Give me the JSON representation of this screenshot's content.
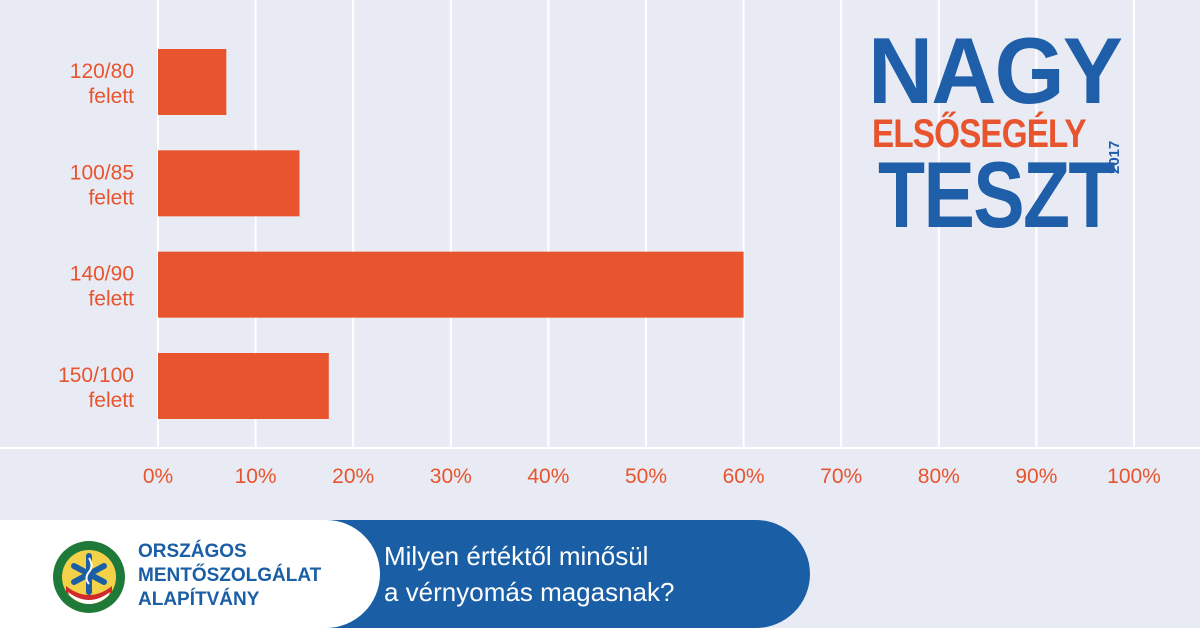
{
  "chart_data": {
    "type": "bar",
    "orientation": "horizontal",
    "categories": [
      "120/80 felett",
      "100/85 felett",
      "140/90 felett",
      "150/100 felett"
    ],
    "category_lines": [
      [
        "120/80",
        "felett"
      ],
      [
        "100/85",
        "felett"
      ],
      [
        "140/90",
        "felett"
      ],
      [
        "150/100",
        "felett"
      ]
    ],
    "values": [
      7,
      14.5,
      60,
      17.5
    ],
    "xlim": [
      0,
      100
    ],
    "xticks": [
      0,
      10,
      20,
      30,
      40,
      50,
      60,
      70,
      80,
      90,
      100
    ],
    "xtick_labels": [
      "0%",
      "10%",
      "20%",
      "30%",
      "40%",
      "50%",
      "60%",
      "70%",
      "80%",
      "90%",
      "100%"
    ],
    "grid": "vertical",
    "title": "",
    "xlabel": "",
    "ylabel": ""
  },
  "brand": {
    "line1": "NAGY",
    "line2": "ELSŐSEGÉLY",
    "line3": "TESZT",
    "year": "2017"
  },
  "footer": {
    "org_lines": [
      "ORSZÁGOS",
      "MENTŐSZOLGÁLAT",
      "ALAPÍTVÁNY"
    ],
    "emblem_text": "ORSZÁGOS MENTŐSZOLGÁLAT",
    "question_lines": [
      "Milyen értéktől minősül",
      "a vérnyomás magasnak?"
    ]
  },
  "colors": {
    "background": "#e9ebf4",
    "bar": "#e8542d",
    "label": "#e8542d",
    "grid": "#ffffff",
    "brand_blue": "#1f5ea8",
    "footer_blue": "#1a5ea6"
  }
}
